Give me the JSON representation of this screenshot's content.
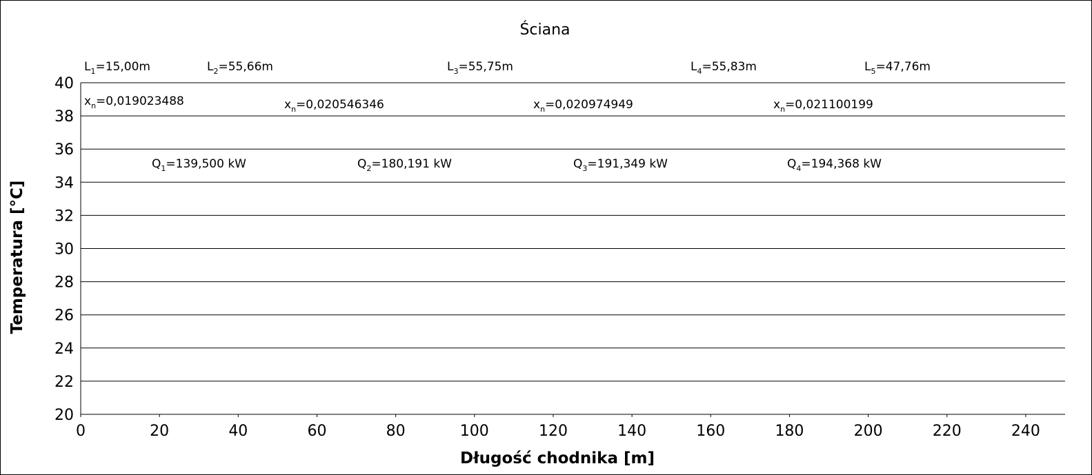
{
  "chart_data": {
    "type": "line",
    "title": "Ściana",
    "xlabel": "Długość chodnika [m]",
    "ylabel": "Temperatura [°C]",
    "xlim": [
      0,
      250
    ],
    "xticks": [
      0,
      20,
      40,
      60,
      80,
      100,
      120,
      140,
      160,
      180,
      200,
      220,
      240
    ],
    "ylim": [
      20,
      40
    ],
    "yticks": [
      20,
      22,
      24,
      26,
      28,
      30,
      32,
      34,
      36,
      38,
      40
    ],
    "grid": true,
    "annotations": [
      {
        "symbol": "L",
        "index": "1",
        "text": "=15,00m"
      },
      {
        "symbol": "L",
        "index": "2",
        "text": "=55,66m"
      },
      {
        "symbol": "L",
        "index": "3",
        "text": "=55,75m"
      },
      {
        "symbol": "L",
        "index": "4",
        "text": "=55,83m"
      },
      {
        "symbol": "L",
        "index": "5",
        "text": "=47,76m"
      },
      {
        "symbol": "x",
        "index": "n",
        "text": "=0,019023488"
      },
      {
        "symbol": "x",
        "index": "n",
        "text": "=0,020546346"
      },
      {
        "symbol": "x",
        "index": "n",
        "text": "=0,020974949"
      },
      {
        "symbol": "x",
        "index": "n",
        "text": "=0,021100199"
      },
      {
        "symbol": "Q",
        "index": "1",
        "text": "=139,500 kW"
      },
      {
        "symbol": "Q",
        "index": "2",
        "text": "=180,191 kW"
      },
      {
        "symbol": "Q",
        "index": "3",
        "text": "=191,349 kW"
      },
      {
        "symbol": "Q",
        "index": "4",
        "text": "=194,368 kW"
      }
    ]
  }
}
